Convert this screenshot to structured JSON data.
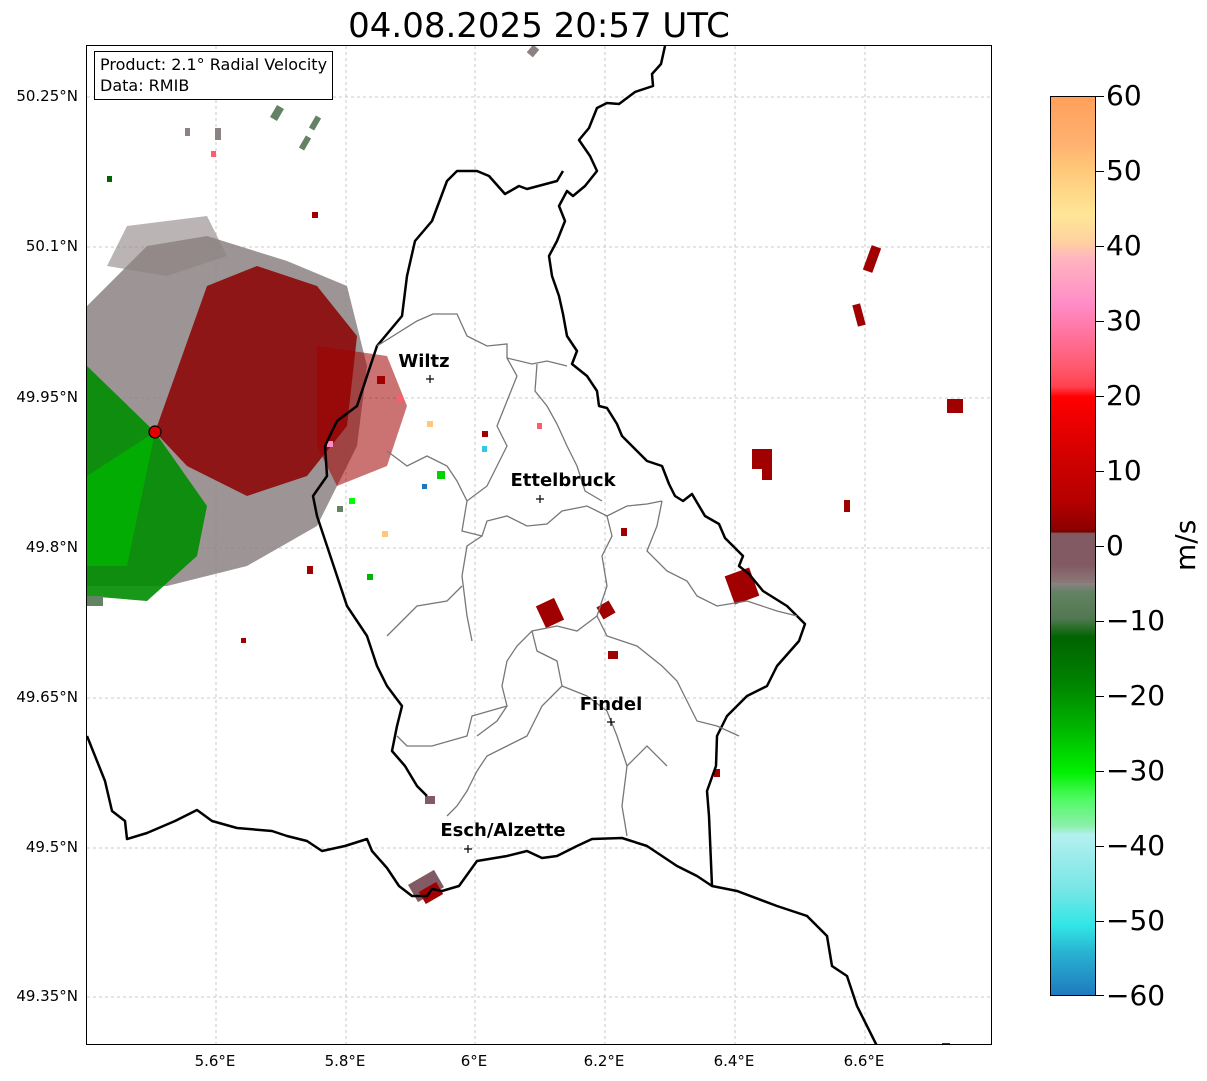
{
  "title": "04.08.2025 20:57 UTC",
  "info": {
    "product": "Product: 2.1° Radial Velocity",
    "data": "Data: RMIB"
  },
  "axes": {
    "x_ticks": [
      "5.6°E",
      "5.8°E",
      "6°E",
      "6.2°E",
      "6.4°E",
      "6.6°E"
    ],
    "y_ticks": [
      "50.25°N",
      "50.1°N",
      "49.95°N",
      "49.8°N",
      "49.65°N",
      "49.5°N",
      "49.35°N"
    ]
  },
  "cities": [
    {
      "name": "Wiltz"
    },
    {
      "name": "Ettelbruck"
    },
    {
      "name": "Findel"
    },
    {
      "name": "Esch/Alzette"
    }
  ],
  "colorbar": {
    "unit": "m/s",
    "range": [
      -60,
      60
    ],
    "ticks": [
      "60",
      "50",
      "40",
      "30",
      "20",
      "10",
      "0",
      "−10",
      "−20",
      "−30",
      "−40",
      "−50",
      "−60"
    ],
    "colors": {
      "orange": "#ffa05a",
      "light_orange": "#ffc878",
      "yellow": "#ffe696",
      "pink_light": "#ffb4c0",
      "pink": "#ff8cc8",
      "salmon": "#ff5a6e",
      "red": "#ff0000",
      "dark_red": "#b40000",
      "maroon": "#780000",
      "mauve": "#825a64",
      "gray": "#8c8282",
      "gray_green": "#648264",
      "dark_green": "#006400",
      "green": "#00b400",
      "bright_green": "#00ff00",
      "light_green": "#8cf0aa",
      "light_cyan": "#b4f0f0",
      "cyan": "#32e6e6",
      "blue": "#1e78be"
    }
  }
}
